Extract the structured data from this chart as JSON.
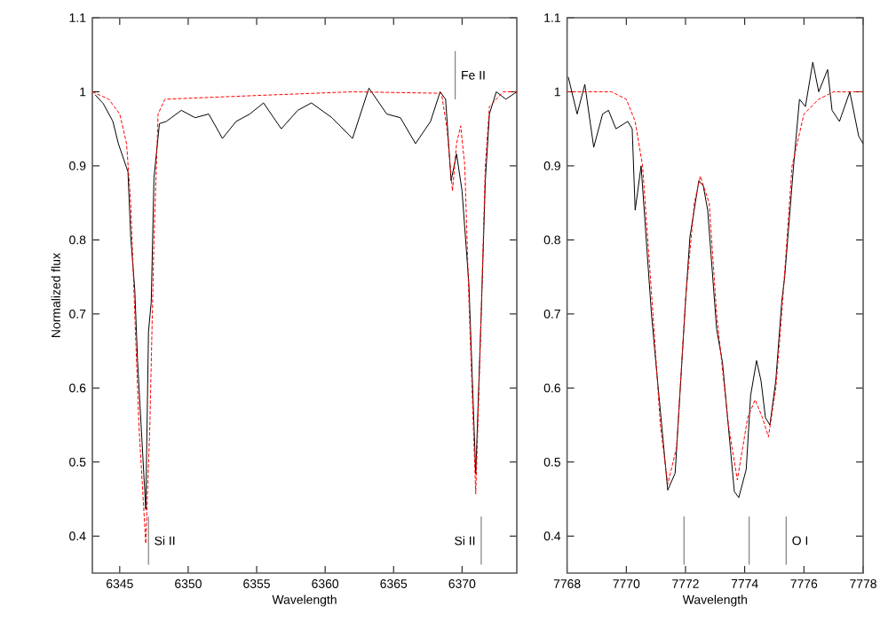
{
  "chart_data": [
    {
      "type": "line",
      "xlabel": "Wavelength",
      "ylabel": "Normalized flux",
      "xlim": [
        6343,
        6374
      ],
      "ylim": [
        0.35,
        1.1
      ],
      "xticks": [
        6345,
        6350,
        6355,
        6360,
        6365,
        6370
      ],
      "yticks": [
        0.4,
        0.5,
        0.6,
        0.7,
        0.8,
        0.9,
        1,
        1.1
      ],
      "grid": false,
      "marker": "none",
      "series": [
        {
          "color": "#000000",
          "line_style": "solid",
          "x": [
            6343.2,
            6343.8,
            6344.5,
            6344.9,
            6345.6,
            6345.8,
            6346.1,
            6346.3,
            6346.9,
            6347.1,
            6347.3,
            6347.5,
            6347.9,
            6348.4,
            6349.5,
            6350.5,
            6351.5,
            6352.5,
            6353.5,
            6354.5,
            6355.5,
            6356.8,
            6358.0,
            6359.0,
            6360.5,
            6362.0,
            6363.2,
            6364.5,
            6365.5,
            6366.6,
            6367.7,
            6368.4,
            6368.8,
            6369.2,
            6369.6,
            6370.0,
            6370.5,
            6371.0,
            6371.4,
            6371.7,
            6372.0,
            6372.5,
            6373.2,
            6374.0
          ],
          "values": [
            0.996,
            0.984,
            0.96,
            0.93,
            0.892,
            0.805,
            0.732,
            0.637,
            0.436,
            0.676,
            0.716,
            0.884,
            0.957,
            0.96,
            0.975,
            0.965,
            0.97,
            0.937,
            0.96,
            0.97,
            0.985,
            0.95,
            0.975,
            0.985,
            0.965,
            0.937,
            1.005,
            0.97,
            0.965,
            0.93,
            0.96,
            1.0,
            0.99,
            0.88,
            0.916,
            0.866,
            0.74,
            0.484,
            0.7,
            0.88,
            0.97,
            1.0,
            0.99,
            1.0
          ]
        },
        {
          "color": "#ff0000",
          "line_style": "dashed",
          "x": [
            6343,
            6344.2,
            6345.0,
            6345.5,
            6345.8,
            6346.0,
            6346.4,
            6346.9,
            6347.2,
            6347.5,
            6347.8,
            6348.3,
            6355,
            6362,
            6368.5,
            6368.9,
            6369.3,
            6369.6,
            6369.9,
            6370.2,
            6370.5,
            6371.0,
            6371.4,
            6371.7,
            6372.0,
            6373,
            6374
          ],
          "values": [
            1.0,
            0.99,
            0.97,
            0.93,
            0.85,
            0.75,
            0.55,
            0.39,
            0.55,
            0.8,
            0.97,
            0.99,
            0.995,
            1.0,
            0.998,
            0.95,
            0.866,
            0.93,
            0.954,
            0.9,
            0.72,
            0.457,
            0.7,
            0.9,
            0.98,
            1.0,
            1.0
          ]
        }
      ],
      "ref_lines": [
        {
          "axis": "x",
          "value": 6369.5,
          "label": "Fe II"
        },
        {
          "axis": "x",
          "value": 6347.1,
          "label": "Si II"
        },
        {
          "axis": "x",
          "value": 6371.4,
          "label": "Si II"
        }
      ]
    },
    {
      "type": "line",
      "xlabel": "Wavelength",
      "xlim": [
        7768,
        7778
      ],
      "ylim": [
        0.35,
        1.1
      ],
      "xticks": [
        7768,
        7770,
        7772,
        7774,
        7776,
        7778
      ],
      "yticks": [
        0.4,
        0.5,
        0.6,
        0.7,
        0.8,
        0.9,
        1,
        1.1
      ],
      "grid": false,
      "marker": "none",
      "series": [
        {
          "color": "#000000",
          "line_style": "solid",
          "x": [
            7768.04,
            7768.34,
            7768.6,
            7768.9,
            7769.2,
            7769.4,
            7769.65,
            7770.05,
            7770.2,
            7770.3,
            7770.5,
            7770.85,
            7771.05,
            7771.4,
            7771.65,
            7772.0,
            7772.15,
            7772.45,
            7772.6,
            7772.75,
            7773.05,
            7773.25,
            7773.65,
            7773.8,
            7774.05,
            7774.2,
            7774.4,
            7774.55,
            7774.7,
            7774.85,
            7775.05,
            7775.25,
            7775.35,
            7775.65,
            7775.85,
            7776.05,
            7776.3,
            7776.5,
            7776.8,
            7776.95,
            7777.2,
            7777.55,
            7777.85,
            7778.0
          ],
          "values": [
            1.02,
            0.97,
            1.01,
            0.925,
            0.97,
            0.975,
            0.95,
            0.96,
            0.95,
            0.84,
            0.9,
            0.7,
            0.612,
            0.462,
            0.485,
            0.716,
            0.804,
            0.88,
            0.873,
            0.84,
            0.68,
            0.634,
            0.46,
            0.452,
            0.49,
            0.59,
            0.637,
            0.61,
            0.56,
            0.55,
            0.61,
            0.716,
            0.75,
            0.9,
            0.99,
            0.98,
            1.04,
            1.0,
            1.03,
            0.975,
            0.96,
            1.0,
            0.94,
            0.93
          ]
        },
        {
          "color": "#ff0000",
          "line_style": "dashed",
          "x": [
            7768,
            7769,
            7769.5,
            7770,
            7770.3,
            7770.55,
            7770.9,
            7771.15,
            7771.4,
            7771.7,
            7772.0,
            7772.3,
            7772.5,
            7772.8,
            7773.05,
            7773.45,
            7773.75,
            7774.1,
            7774.35,
            7774.6,
            7774.8,
            7775.05,
            7775.25,
            7775.6,
            7776.0,
            7776.5,
            7777,
            7778
          ],
          "values": [
            1.0,
            1.0,
            1.0,
            0.99,
            0.96,
            0.9,
            0.7,
            0.55,
            0.47,
            0.52,
            0.72,
            0.85,
            0.886,
            0.85,
            0.7,
            0.55,
            0.476,
            0.56,
            0.584,
            0.56,
            0.534,
            0.6,
            0.7,
            0.9,
            0.97,
            0.99,
            1.0,
            1.0
          ]
        }
      ],
      "ref_lines": [
        {
          "axis": "x",
          "value": 7771.95
        },
        {
          "axis": "x",
          "value": 7774.15
        },
        {
          "axis": "x",
          "value": 7775.4,
          "label": "O I"
        }
      ]
    }
  ]
}
